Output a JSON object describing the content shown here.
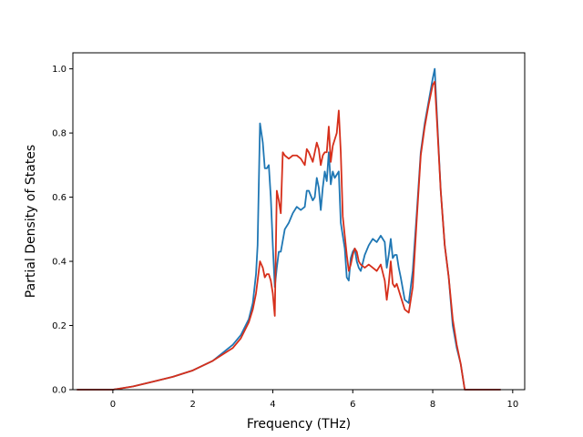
{
  "chart_data": {
    "type": "line",
    "title": "",
    "xlabel": "Frequency (THz)",
    "ylabel": "Partial Density of States",
    "xlim": [
      -1.0,
      10.3
    ],
    "ylim": [
      0.0,
      1.05
    ],
    "xticks": [
      0,
      2,
      4,
      6,
      8,
      10
    ],
    "xtick_labels": [
      "0",
      "2",
      "4",
      "6",
      "8",
      "10"
    ],
    "yticks": [
      0.0,
      0.2,
      0.4,
      0.6,
      0.8,
      1.0
    ],
    "ytick_labels": [
      "0.0",
      "0.2",
      "0.4",
      "0.6",
      "0.8",
      "1.0"
    ],
    "grid": false,
    "series": [
      {
        "color": "#1f77b4",
        "points": [
          [
            -0.9,
            0.0
          ],
          [
            0.0,
            0.0
          ],
          [
            0.5,
            0.01
          ],
          [
            1.0,
            0.025
          ],
          [
            1.5,
            0.04
          ],
          [
            2.0,
            0.06
          ],
          [
            2.5,
            0.09
          ],
          [
            3.0,
            0.14
          ],
          [
            3.2,
            0.17
          ],
          [
            3.4,
            0.22
          ],
          [
            3.5,
            0.27
          ],
          [
            3.58,
            0.36
          ],
          [
            3.62,
            0.45
          ],
          [
            3.68,
            0.83
          ],
          [
            3.75,
            0.77
          ],
          [
            3.8,
            0.69
          ],
          [
            3.85,
            0.69
          ],
          [
            3.9,
            0.7
          ],
          [
            3.95,
            0.6
          ],
          [
            4.0,
            0.45
          ],
          [
            4.05,
            0.32
          ],
          [
            4.1,
            0.38
          ],
          [
            4.15,
            0.43
          ],
          [
            4.2,
            0.43
          ],
          [
            4.3,
            0.5
          ],
          [
            4.4,
            0.52
          ],
          [
            4.5,
            0.55
          ],
          [
            4.6,
            0.57
          ],
          [
            4.7,
            0.56
          ],
          [
            4.8,
            0.57
          ],
          [
            4.85,
            0.62
          ],
          [
            4.9,
            0.62
          ],
          [
            5.0,
            0.59
          ],
          [
            5.05,
            0.6
          ],
          [
            5.1,
            0.66
          ],
          [
            5.15,
            0.63
          ],
          [
            5.2,
            0.56
          ],
          [
            5.25,
            0.63
          ],
          [
            5.3,
            0.68
          ],
          [
            5.35,
            0.65
          ],
          [
            5.4,
            0.74
          ],
          [
            5.45,
            0.64
          ],
          [
            5.5,
            0.68
          ],
          [
            5.55,
            0.66
          ],
          [
            5.6,
            0.67
          ],
          [
            5.65,
            0.68
          ],
          [
            5.7,
            0.52
          ],
          [
            5.75,
            0.48
          ],
          [
            5.8,
            0.44
          ],
          [
            5.85,
            0.35
          ],
          [
            5.9,
            0.34
          ],
          [
            5.95,
            0.41
          ],
          [
            6.0,
            0.43
          ],
          [
            6.05,
            0.44
          ],
          [
            6.1,
            0.4
          ],
          [
            6.15,
            0.38
          ],
          [
            6.2,
            0.37
          ],
          [
            6.3,
            0.42
          ],
          [
            6.4,
            0.45
          ],
          [
            6.5,
            0.47
          ],
          [
            6.6,
            0.46
          ],
          [
            6.7,
            0.48
          ],
          [
            6.8,
            0.46
          ],
          [
            6.85,
            0.38
          ],
          [
            6.9,
            0.42
          ],
          [
            6.95,
            0.47
          ],
          [
            7.0,
            0.41
          ],
          [
            7.05,
            0.42
          ],
          [
            7.1,
            0.42
          ],
          [
            7.15,
            0.38
          ],
          [
            7.2,
            0.35
          ],
          [
            7.3,
            0.28
          ],
          [
            7.4,
            0.27
          ],
          [
            7.5,
            0.37
          ],
          [
            7.6,
            0.55
          ],
          [
            7.7,
            0.74
          ],
          [
            7.8,
            0.83
          ],
          [
            7.9,
            0.9
          ],
          [
            8.0,
            0.97
          ],
          [
            8.05,
            1.0
          ],
          [
            8.1,
            0.87
          ],
          [
            8.2,
            0.62
          ],
          [
            8.3,
            0.45
          ],
          [
            8.4,
            0.35
          ],
          [
            8.5,
            0.2
          ],
          [
            8.6,
            0.13
          ],
          [
            8.7,
            0.08
          ],
          [
            8.8,
            0.0
          ],
          [
            9.7,
            0.0
          ]
        ]
      },
      {
        "color": "#d62f1b",
        "points": [
          [
            -0.9,
            0.0
          ],
          [
            0.0,
            0.0
          ],
          [
            0.5,
            0.01
          ],
          [
            1.0,
            0.025
          ],
          [
            1.5,
            0.04
          ],
          [
            2.0,
            0.06
          ],
          [
            2.5,
            0.09
          ],
          [
            3.0,
            0.13
          ],
          [
            3.2,
            0.16
          ],
          [
            3.4,
            0.21
          ],
          [
            3.5,
            0.25
          ],
          [
            3.58,
            0.3
          ],
          [
            3.62,
            0.34
          ],
          [
            3.68,
            0.4
          ],
          [
            3.75,
            0.38
          ],
          [
            3.8,
            0.35
          ],
          [
            3.85,
            0.36
          ],
          [
            3.9,
            0.36
          ],
          [
            3.95,
            0.34
          ],
          [
            4.0,
            0.3
          ],
          [
            4.05,
            0.23
          ],
          [
            4.1,
            0.62
          ],
          [
            4.15,
            0.59
          ],
          [
            4.2,
            0.55
          ],
          [
            4.25,
            0.74
          ],
          [
            4.3,
            0.73
          ],
          [
            4.4,
            0.72
          ],
          [
            4.5,
            0.73
          ],
          [
            4.6,
            0.73
          ],
          [
            4.7,
            0.72
          ],
          [
            4.8,
            0.7
          ],
          [
            4.85,
            0.75
          ],
          [
            4.9,
            0.74
          ],
          [
            5.0,
            0.71
          ],
          [
            5.1,
            0.77
          ],
          [
            5.15,
            0.75
          ],
          [
            5.2,
            0.7
          ],
          [
            5.25,
            0.73
          ],
          [
            5.3,
            0.74
          ],
          [
            5.35,
            0.74
          ],
          [
            5.4,
            0.82
          ],
          [
            5.45,
            0.71
          ],
          [
            5.5,
            0.76
          ],
          [
            5.55,
            0.78
          ],
          [
            5.6,
            0.8
          ],
          [
            5.65,
            0.87
          ],
          [
            5.7,
            0.74
          ],
          [
            5.75,
            0.54
          ],
          [
            5.8,
            0.48
          ],
          [
            5.85,
            0.42
          ],
          [
            5.9,
            0.37
          ],
          [
            5.95,
            0.39
          ],
          [
            6.0,
            0.42
          ],
          [
            6.05,
            0.44
          ],
          [
            6.1,
            0.43
          ],
          [
            6.15,
            0.4
          ],
          [
            6.2,
            0.39
          ],
          [
            6.3,
            0.38
          ],
          [
            6.4,
            0.39
          ],
          [
            6.5,
            0.38
          ],
          [
            6.6,
            0.37
          ],
          [
            6.7,
            0.39
          ],
          [
            6.8,
            0.34
          ],
          [
            6.85,
            0.28
          ],
          [
            6.9,
            0.33
          ],
          [
            6.95,
            0.4
          ],
          [
            7.0,
            0.33
          ],
          [
            7.05,
            0.32
          ],
          [
            7.1,
            0.33
          ],
          [
            7.15,
            0.31
          ],
          [
            7.2,
            0.29
          ],
          [
            7.3,
            0.25
          ],
          [
            7.4,
            0.24
          ],
          [
            7.5,
            0.32
          ],
          [
            7.6,
            0.53
          ],
          [
            7.7,
            0.73
          ],
          [
            7.8,
            0.82
          ],
          [
            7.9,
            0.89
          ],
          [
            8.0,
            0.95
          ],
          [
            8.05,
            0.96
          ],
          [
            8.1,
            0.85
          ],
          [
            8.2,
            0.62
          ],
          [
            8.3,
            0.45
          ],
          [
            8.4,
            0.35
          ],
          [
            8.5,
            0.22
          ],
          [
            8.6,
            0.14
          ],
          [
            8.7,
            0.08
          ],
          [
            8.8,
            0.0
          ],
          [
            9.7,
            0.0
          ]
        ]
      }
    ]
  }
}
